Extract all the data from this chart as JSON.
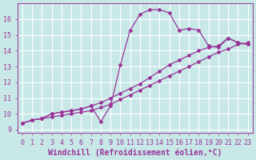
{
  "background_color": "#c8e8e8",
  "grid_color": "#ffffff",
  "line_color": "#993399",
  "marker": "D",
  "markersize": 2.0,
  "linewidth": 0.9,
  "xlabel": "Windchill (Refroidissement éolien,°C)",
  "xlabel_fontsize": 7,
  "tick_fontsize": 6,
  "xlim": [
    -0.5,
    23.5
  ],
  "ylim": [
    8.8,
    17.0
  ],
  "yticks": [
    9,
    10,
    11,
    12,
    13,
    14,
    15,
    16
  ],
  "xticks": [
    0,
    1,
    2,
    3,
    4,
    5,
    6,
    7,
    8,
    9,
    10,
    11,
    12,
    13,
    14,
    15,
    16,
    17,
    18,
    19,
    20,
    21,
    22,
    23
  ],
  "series": [
    {
      "x": [
        0,
        1,
        2,
        3,
        4,
        5,
        6,
        7,
        8,
        9,
        10,
        11,
        12,
        13,
        14,
        15,
        16,
        17,
        18,
        19,
        20,
        21,
        22,
        23
      ],
      "y": [
        9.4,
        9.6,
        9.7,
        9.8,
        9.9,
        10.0,
        10.1,
        10.2,
        10.4,
        10.6,
        10.9,
        11.2,
        11.5,
        11.8,
        12.1,
        12.4,
        12.7,
        13.0,
        13.3,
        13.6,
        13.9,
        14.1,
        14.4,
        14.5
      ]
    },
    {
      "x": [
        0,
        1,
        2,
        3,
        4,
        5,
        6,
        7,
        8,
        9,
        10,
        11,
        12,
        13,
        14,
        15,
        16,
        17,
        18,
        19,
        20,
        21,
        22,
        23
      ],
      "y": [
        9.4,
        9.6,
        9.7,
        10.0,
        10.1,
        10.2,
        10.3,
        10.5,
        10.7,
        11.0,
        11.3,
        11.6,
        11.9,
        12.3,
        12.7,
        13.1,
        13.4,
        13.7,
        14.0,
        14.2,
        14.3,
        14.8,
        14.5,
        14.4
      ]
    },
    {
      "x": [
        0,
        1,
        2,
        3,
        4,
        5,
        6,
        7,
        8,
        9,
        10,
        11,
        12,
        13,
        14,
        15,
        16,
        17,
        18,
        19,
        20,
        21,
        22,
        23
      ],
      "y": [
        9.4,
        9.6,
        9.7,
        10.0,
        10.1,
        10.2,
        10.3,
        10.5,
        9.5,
        10.5,
        13.1,
        15.3,
        16.3,
        16.6,
        16.6,
        16.4,
        15.3,
        15.4,
        15.3,
        14.3,
        14.2,
        14.8,
        14.5,
        14.4
      ]
    }
  ]
}
